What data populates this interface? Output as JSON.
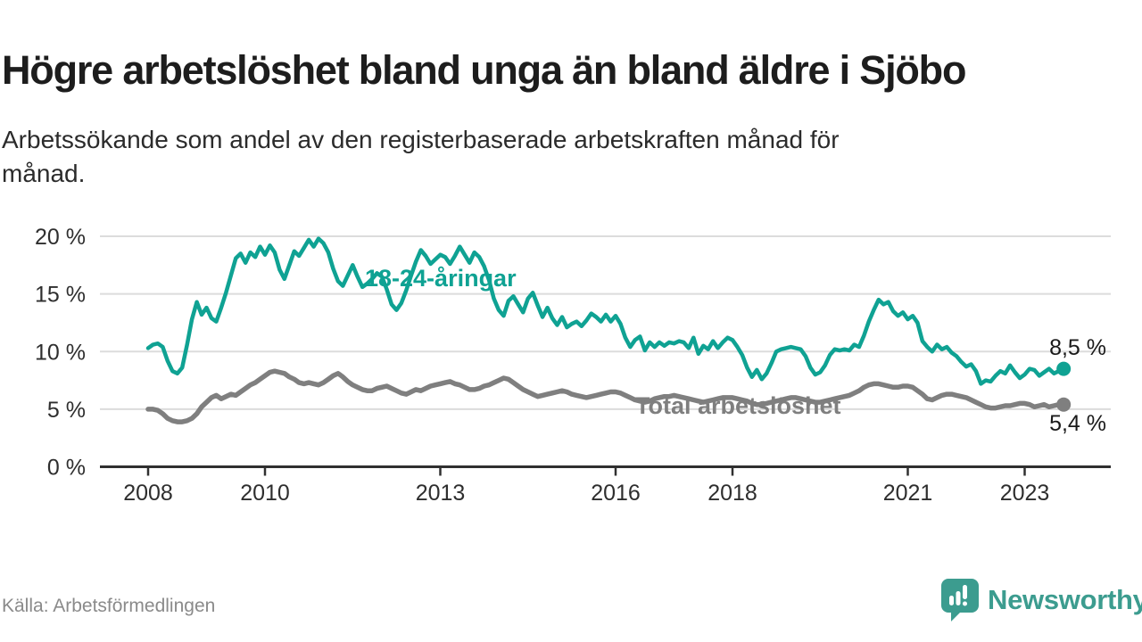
{
  "header": {
    "title": "Högre arbetslöshet bland unga än bland äldre i Sjöbo",
    "subtitle_line1": "Arbetssökande som andel av den registerbaserade arbetskraften månad för",
    "subtitle_line2": "månad."
  },
  "footer": {
    "source": "Källa: Arbetsförmedlingen",
    "logo_text": "Newsworthy"
  },
  "colors": {
    "young": "#0fa293",
    "total": "#7f7f7f",
    "logo_teal": "#3c9c8f",
    "axis": "#303030",
    "grid": "#dcdcdc",
    "tick_text": "#2e2e2e",
    "end_label_text": "#1a1a1a",
    "muted_text": "#8a8a8a"
  },
  "chart_data": {
    "type": "line",
    "title": "Högre arbetslöshet bland unga än bland äldre i Sjöbo",
    "subtitle": "Arbetssökande som andel av den registerbaserade arbetskraften månad för månad.",
    "x_unit": "month",
    "x_start": "2008-01",
    "x_end": "2023-09",
    "grid": "horizontal",
    "legend_position": "inline-labels",
    "ylim": [
      0,
      20
    ],
    "yticks": [
      0,
      5,
      10,
      15,
      20
    ],
    "ytick_labels": [
      "0 %",
      "5 %",
      "10 %",
      "15 %",
      "20 %"
    ],
    "xticks": [
      2008,
      2010,
      2013,
      2016,
      2018,
      2021,
      2023
    ],
    "xtick_labels": [
      "2008",
      "2010",
      "2013",
      "2016",
      "2018",
      "2021",
      "2023"
    ],
    "series": [
      {
        "name": "18-24-åringar",
        "color": "#0fa293",
        "end_label": "8,5 %",
        "end_value": 8.5,
        "values": [
          10.3,
          10.6,
          10.7,
          10.4,
          9.2,
          8.3,
          8.1,
          8.6,
          10.6,
          12.8,
          14.3,
          13.2,
          13.8,
          12.9,
          12.6,
          13.8,
          15.1,
          16.6,
          18.1,
          18.5,
          17.7,
          18.6,
          18.2,
          19.1,
          18.4,
          19.2,
          18.6,
          17.1,
          16.3,
          17.5,
          18.7,
          18.3,
          19.0,
          19.7,
          19.1,
          19.8,
          19.4,
          18.6,
          17.2,
          16.1,
          15.7,
          16.6,
          17.5,
          16.5,
          15.6,
          15.9,
          16.3,
          16.8,
          16.5,
          15.4,
          14.1,
          13.6,
          14.2,
          15.3,
          16.6,
          17.8,
          18.8,
          18.3,
          17.6,
          18.0,
          18.4,
          18.2,
          17.6,
          18.3,
          19.1,
          18.4,
          17.7,
          18.6,
          18.2,
          17.4,
          16.2,
          14.6,
          13.6,
          13.1,
          14.4,
          14.8,
          14.1,
          13.4,
          14.6,
          15.1,
          14.0,
          13.0,
          13.8,
          12.9,
          12.3,
          13.0,
          12.1,
          12.4,
          12.6,
          12.2,
          12.7,
          13.3,
          13.0,
          12.6,
          13.2,
          12.6,
          13.1,
          12.4,
          11.2,
          10.4,
          11.0,
          11.3,
          10.1,
          10.8,
          10.4,
          10.8,
          10.5,
          10.8,
          10.7,
          10.9,
          10.8,
          10.3,
          11.2,
          9.8,
          10.5,
          10.2,
          10.9,
          10.3,
          10.8,
          11.2,
          11.0,
          10.4,
          9.7,
          8.6,
          7.8,
          8.4,
          7.6,
          8.1,
          9.0,
          10.0,
          10.2,
          10.3,
          10.4,
          10.3,
          10.2,
          9.6,
          8.6,
          8.0,
          8.2,
          8.8,
          9.7,
          10.2,
          10.1,
          10.2,
          10.1,
          10.6,
          10.4,
          11.4,
          12.6,
          13.6,
          14.5,
          14.1,
          14.3,
          13.5,
          13.1,
          13.4,
          12.8,
          13.1,
          12.5,
          10.9,
          10.4,
          10.0,
          10.6,
          10.2,
          10.4,
          9.9,
          9.6,
          9.1,
          8.7,
          8.9,
          8.3,
          7.2,
          7.5,
          7.4,
          7.9,
          8.3,
          8.1,
          8.8,
          8.2,
          7.7,
          8.0,
          8.5,
          8.4,
          7.9,
          8.2,
          8.5,
          8.1,
          8.3,
          8.5
        ]
      },
      {
        "name": "Total arbetslöshet",
        "color": "#7f7f7f",
        "end_label": "5,4 %",
        "end_value": 5.4,
        "values": [
          5.0,
          5.0,
          4.9,
          4.6,
          4.2,
          4.0,
          3.9,
          3.9,
          4.0,
          4.2,
          4.6,
          5.2,
          5.6,
          6.0,
          6.2,
          5.9,
          6.1,
          6.3,
          6.2,
          6.5,
          6.8,
          7.1,
          7.3,
          7.6,
          7.9,
          8.2,
          8.3,
          8.2,
          8.1,
          7.8,
          7.6,
          7.3,
          7.2,
          7.3,
          7.2,
          7.1,
          7.3,
          7.6,
          7.9,
          8.1,
          7.8,
          7.4,
          7.1,
          6.9,
          6.7,
          6.6,
          6.6,
          6.8,
          6.9,
          7.0,
          6.8,
          6.6,
          6.4,
          6.3,
          6.5,
          6.7,
          6.6,
          6.8,
          7.0,
          7.1,
          7.2,
          7.3,
          7.4,
          7.2,
          7.1,
          6.9,
          6.7,
          6.7,
          6.8,
          7.0,
          7.1,
          7.3,
          7.5,
          7.7,
          7.6,
          7.3,
          7.0,
          6.7,
          6.5,
          6.3,
          6.1,
          6.2,
          6.3,
          6.4,
          6.5,
          6.6,
          6.5,
          6.3,
          6.2,
          6.1,
          6.0,
          6.1,
          6.2,
          6.3,
          6.4,
          6.5,
          6.5,
          6.4,
          6.2,
          6.0,
          5.8,
          5.7,
          5.6,
          5.7,
          5.9,
          6.0,
          6.1,
          6.1,
          6.2,
          6.1,
          6.0,
          5.9,
          5.8,
          5.7,
          5.6,
          5.7,
          5.8,
          5.9,
          6.0,
          6.0,
          6.0,
          5.9,
          5.8,
          5.7,
          5.5,
          5.4,
          5.4,
          5.5,
          5.6,
          5.7,
          5.8,
          5.9,
          6.0,
          6.0,
          5.9,
          5.8,
          5.7,
          5.6,
          5.6,
          5.7,
          5.8,
          5.9,
          6.0,
          6.1,
          6.2,
          6.4,
          6.6,
          6.9,
          7.1,
          7.2,
          7.2,
          7.1,
          7.0,
          6.9,
          6.9,
          7.0,
          7.0,
          6.9,
          6.6,
          6.3,
          5.9,
          5.8,
          6.0,
          6.2,
          6.3,
          6.3,
          6.2,
          6.1,
          6.0,
          5.8,
          5.6,
          5.4,
          5.2,
          5.1,
          5.1,
          5.2,
          5.3,
          5.3,
          5.4,
          5.5,
          5.5,
          5.4,
          5.2,
          5.3,
          5.4,
          5.2,
          5.3,
          5.4,
          5.4
        ]
      }
    ]
  }
}
